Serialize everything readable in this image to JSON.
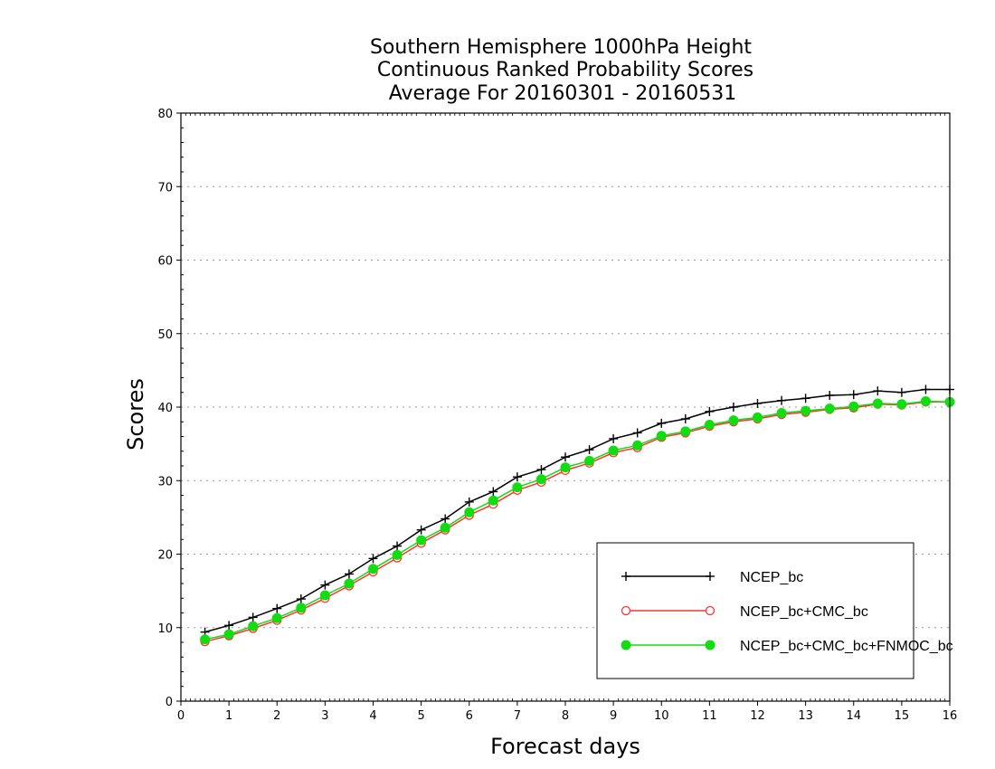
{
  "chart_data": {
    "type": "line",
    "title_lines": [
      "Southern Hemisphere 1000hPa Height",
      "Continuous Ranked Probability Scores",
      "Average For 20160301 - 20160531"
    ],
    "xlabel": "Forecast days",
    "ylabel": "Scores",
    "xlim": [
      0,
      16
    ],
    "ylim": [
      0,
      80
    ],
    "xticks": [
      0,
      1,
      2,
      3,
      4,
      5,
      6,
      7,
      8,
      9,
      10,
      11,
      12,
      13,
      14,
      15,
      16
    ],
    "yticks": [
      0,
      10,
      20,
      30,
      40,
      50,
      60,
      70,
      80
    ],
    "grid": "horizontal dotted",
    "legend_position": "bottom-right",
    "x": [
      0.5,
      1,
      1.5,
      2,
      2.5,
      3,
      3.5,
      4,
      4.5,
      5,
      5.5,
      6,
      6.5,
      7,
      7.5,
      8,
      8.5,
      9,
      9.5,
      10,
      10.5,
      11,
      11.5,
      12,
      12.5,
      13,
      13.5,
      14,
      14.5,
      15,
      15.5,
      16
    ],
    "series": [
      {
        "name": "NCEP_bc",
        "color": "#000000",
        "marker": "plus",
        "values": [
          9.4,
          10.3,
          11.4,
          12.6,
          13.9,
          15.8,
          17.3,
          19.4,
          21.1,
          23.3,
          24.8,
          27.1,
          28.5,
          30.5,
          31.5,
          33.2,
          34.2,
          35.7,
          36.5,
          37.8,
          38.4,
          39.4,
          40.0,
          40.5,
          40.9,
          41.2,
          41.6,
          41.7,
          42.2,
          42.0,
          42.4,
          42.4
        ]
      },
      {
        "name": "NCEP_bc+CMC_bc",
        "color": "#ff3333",
        "marker": "open-circle",
        "values": [
          8.1,
          8.9,
          9.9,
          11.0,
          12.4,
          14.0,
          15.7,
          17.6,
          19.5,
          21.5,
          23.3,
          25.3,
          26.8,
          28.7,
          29.8,
          31.4,
          32.4,
          33.8,
          34.5,
          35.9,
          36.5,
          37.4,
          38.0,
          38.4,
          39.0,
          39.3,
          39.7,
          39.9,
          40.4,
          40.3,
          40.7,
          40.7
        ]
      },
      {
        "name": "NCEP_bc+CMC_bc+FNMOC_bc",
        "color": "#11dd11",
        "marker": "filled-circle",
        "values": [
          8.4,
          9.1,
          10.2,
          11.3,
          12.7,
          14.4,
          16.0,
          18.0,
          19.9,
          21.9,
          23.6,
          25.7,
          27.3,
          29.1,
          30.2,
          31.8,
          32.7,
          34.1,
          34.8,
          36.1,
          36.7,
          37.6,
          38.2,
          38.6,
          39.2,
          39.5,
          39.8,
          40.1,
          40.5,
          40.4,
          40.8,
          40.7
        ]
      }
    ]
  }
}
